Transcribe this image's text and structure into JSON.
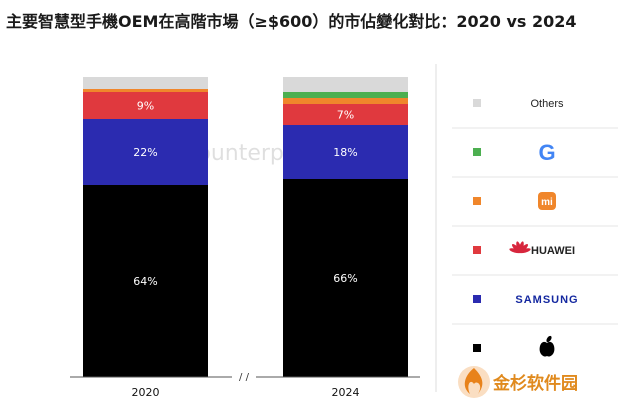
{
  "chart_data": {
    "type": "bar",
    "stacked": true,
    "title": "主要智慧型手機OEM在高階市場（≥$600）的市佔變化對比：2020 vs 2024",
    "categories": [
      "2020",
      "2024"
    ],
    "axis_break_label": "/ /",
    "ylim": [
      0,
      100
    ],
    "series": [
      {
        "name": "Apple",
        "color": "#000000",
        "values": [
          64,
          66
        ],
        "labels": [
          "64%",
          "66%"
        ]
      },
      {
        "name": "SAMSUNG",
        "color": "#2b2bb0",
        "values": [
          22,
          18
        ],
        "labels": [
          "22%",
          "18%"
        ]
      },
      {
        "name": "HUAWEI",
        "color": "#e0393e",
        "values": [
          9,
          7
        ],
        "labels": [
          "9%",
          "7%"
        ]
      },
      {
        "name": "Xiaomi",
        "color": "#f0862b",
        "values": [
          1,
          2
        ],
        "labels": [
          "",
          ""
        ]
      },
      {
        "name": "Google",
        "color": "#4caf50",
        "values": [
          0,
          2
        ],
        "labels": [
          "",
          ""
        ]
      },
      {
        "name": "Others",
        "color": "#d9d9d9",
        "values": [
          4,
          5
        ],
        "labels": [
          "",
          ""
        ]
      }
    ],
    "legend": {
      "placement": "right",
      "items": [
        {
          "key": "others",
          "text": "Others",
          "color": "#d9d9d9"
        },
        {
          "key": "google",
          "text": "G",
          "color": "#4caf50"
        },
        {
          "key": "xiaomi",
          "text": "mi",
          "color": "#f0862b"
        },
        {
          "key": "huawei",
          "text": "HUAWEI",
          "color": "#e0393e"
        },
        {
          "key": "samsung",
          "text": "SAMSUNG",
          "color": "#2b2bb0"
        },
        {
          "key": "apple",
          "text": "",
          "color": "#000000",
          "icon": "apple-logo-icon"
        }
      ]
    }
  },
  "watermark": {
    "text": "Counterpoint",
    "icon": "counterpoint-logo-icon"
  },
  "badge": {
    "text": "金杉软件园",
    "icon": "flame-logo-icon"
  }
}
